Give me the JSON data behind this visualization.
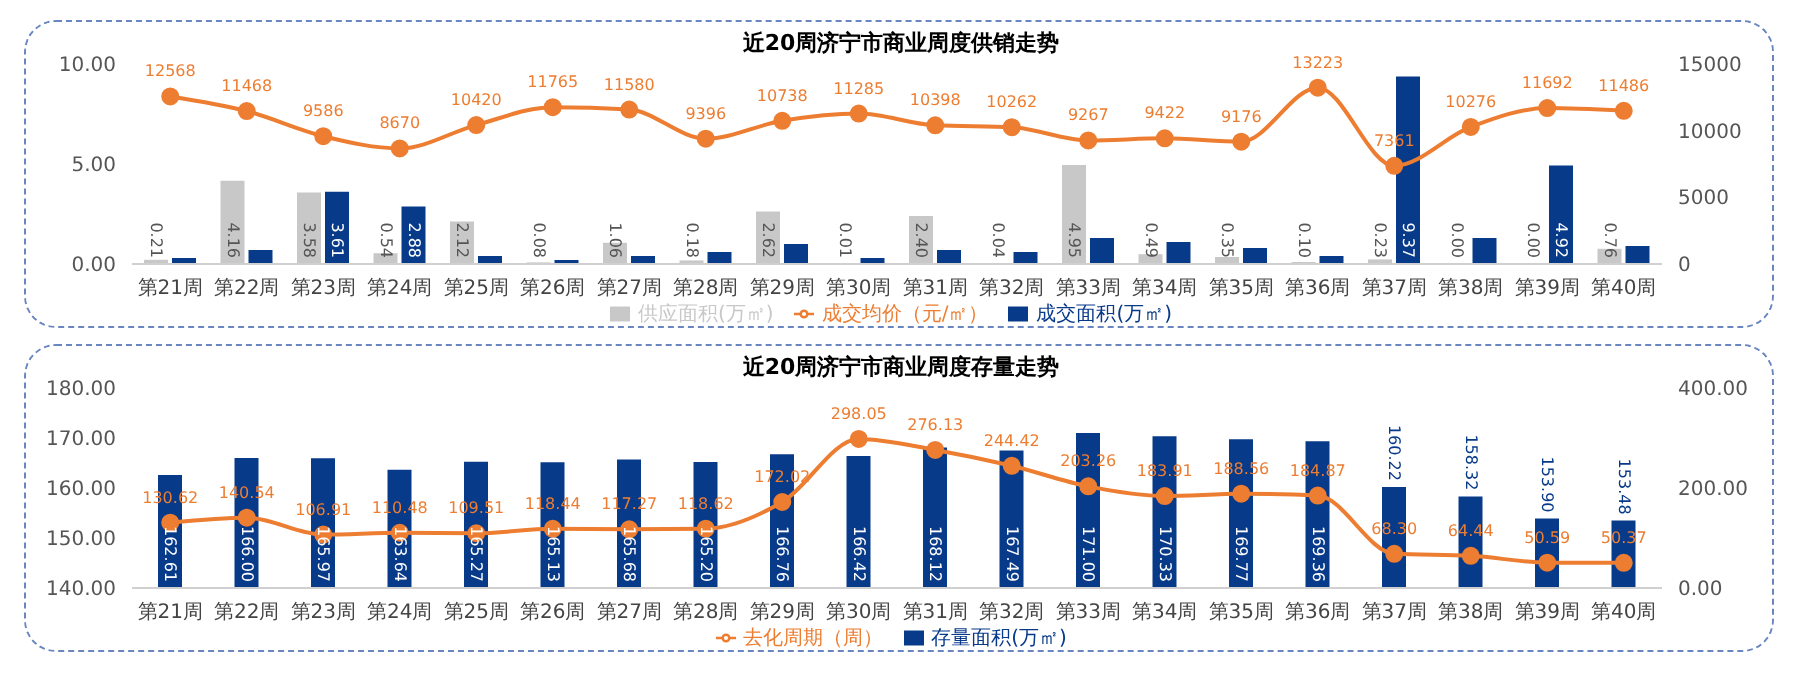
{
  "chart_data": [
    {
      "type": "bar",
      "title": "近20周济宁市商业周度供销走势",
      "categories": [
        "第21周",
        "第22周",
        "第23周",
        "第24周",
        "第25周",
        "第26周",
        "第27周",
        "第28周",
        "第29周",
        "第30周",
        "第31周",
        "第32周",
        "第33周",
        "第34周",
        "第35周",
        "第36周",
        "第37周",
        "第38周",
        "第39周",
        "第40周"
      ],
      "series": [
        {
          "name": "供应面积(万㎡)",
          "color": "#c8c8c8",
          "values": [
            0.21,
            4.16,
            3.58,
            0.54,
            2.12,
            0.08,
            1.06,
            0.18,
            2.62,
            0.01,
            2.4,
            0.04,
            4.95,
            0.49,
            0.35,
            0.1,
            0.23,
            0.0,
            0.0,
            0.76
          ],
          "value_labels": [
            "0.21",
            "4.16",
            "3.58",
            "0.54",
            "2.12",
            "0.08",
            "1.06",
            "0.18",
            "2.62",
            "0.01",
            "2.40",
            "0.04",
            "4.95",
            "0.49",
            "0.35",
            "0.10",
            "0.23",
            "0.00",
            "0.00",
            "0.76"
          ]
        },
        {
          "name": "成交面积(万㎡)",
          "color": "#083a8a",
          "values": [
            0.3,
            0.7,
            3.61,
            2.88,
            0.4,
            0.2,
            0.4,
            0.6,
            1.0,
            0.3,
            0.7,
            0.6,
            1.3,
            1.1,
            0.8,
            0.4,
            9.37,
            1.3,
            4.92,
            0.9
          ],
          "value_labels": [
            null,
            null,
            "3.61",
            "2.88",
            null,
            null,
            null,
            null,
            null,
            null,
            null,
            null,
            null,
            null,
            null,
            null,
            "9.37",
            null,
            "4.92",
            null
          ]
        },
        {
          "name": "成交均价（元/㎡）",
          "type": "line",
          "axis": "y2",
          "color": "#ed7d31",
          "values": [
            12568,
            11468,
            9586,
            8670,
            10420,
            11765,
            11580,
            9396,
            10738,
            11285,
            10398,
            10262,
            9267,
            9422,
            9176,
            13223,
            7361,
            10276,
            11692,
            11486
          ],
          "value_labels": [
            "12568",
            "11468",
            "9586",
            "8670",
            "10420",
            "11765",
            "11580",
            "9396",
            "10738",
            "11285",
            "10398",
            "10262",
            "9267",
            "9422",
            "9176",
            "13223",
            "7361",
            "10276",
            "11692",
            "11486"
          ]
        }
      ],
      "ylim": [
        0,
        10
      ],
      "yticks": [
        {
          "value": 0,
          "label": "0.00"
        },
        {
          "value": 5,
          "label": "5.00"
        },
        {
          "value": 10,
          "label": "10.00"
        }
      ],
      "y2lim": [
        0,
        15000
      ],
      "y2ticks": [
        0,
        5000,
        10000,
        15000
      ],
      "marker": "circle",
      "legend": "bottom"
    },
    {
      "type": "bar",
      "title": "近20周济宁市商业周度存量走势",
      "categories": [
        "第21周",
        "第22周",
        "第23周",
        "第24周",
        "第25周",
        "第26周",
        "第27周",
        "第28周",
        "第29周",
        "第30周",
        "第31周",
        "第32周",
        "第33周",
        "第34周",
        "第35周",
        "第36周",
        "第37周",
        "第38周",
        "第39周",
        "第40周"
      ],
      "series": [
        {
          "name": "存量面积(万㎡)",
          "color": "#083a8a",
          "values": [
            162.61,
            166.0,
            165.97,
            163.64,
            165.27,
            165.13,
            165.68,
            165.2,
            166.76,
            166.42,
            168.12,
            167.49,
            171.0,
            170.33,
            169.77,
            169.36,
            160.22,
            158.32,
            153.9,
            153.48
          ],
          "value_labels": [
            "162.61",
            "166.00",
            "165.97",
            "163.64",
            "165.27",
            "165.13",
            "165.68",
            "165.20",
            "166.76",
            "166.42",
            "168.12",
            "167.49",
            "171.00",
            "170.33",
            "169.77",
            "169.36",
            "160.22",
            "158.32",
            "153.90",
            "153.48"
          ]
        },
        {
          "name": "去化周期（周）",
          "type": "line",
          "axis": "y2",
          "color": "#ed7d31",
          "values": [
            130.62,
            140.54,
            106.91,
            110.48,
            109.51,
            118.44,
            117.27,
            118.62,
            172.02,
            298.05,
            276.13,
            244.42,
            203.26,
            183.91,
            188.56,
            184.87,
            68.3,
            64.44,
            50.59,
            50.37
          ],
          "value_labels": [
            "130.62",
            "140.54",
            "106.91",
            "110.48",
            "109.51",
            "118.44",
            "117.27",
            "118.62",
            "172.02",
            "298.05",
            "276.13",
            "244.42",
            "203.26",
            "183.91",
            "188.56",
            "184.87",
            "68.30",
            "64.44",
            "50.59",
            "50.37"
          ]
        }
      ],
      "ylim": [
        140,
        180
      ],
      "yticks": [
        {
          "value": 140,
          "label": "140.00"
        },
        {
          "value": 150,
          "label": "150.00"
        },
        {
          "value": 160,
          "label": "160.00"
        },
        {
          "value": 170,
          "label": "170.00"
        },
        {
          "value": 180,
          "label": "180.00"
        }
      ],
      "y2lim": [
        0,
        400
      ],
      "y2ticks": [
        {
          "value": 0,
          "label": "0.00"
        },
        {
          "value": 200,
          "label": "200.00"
        },
        {
          "value": 400,
          "label": "400.00"
        }
      ],
      "marker": "circle",
      "legend": "bottom"
    }
  ]
}
